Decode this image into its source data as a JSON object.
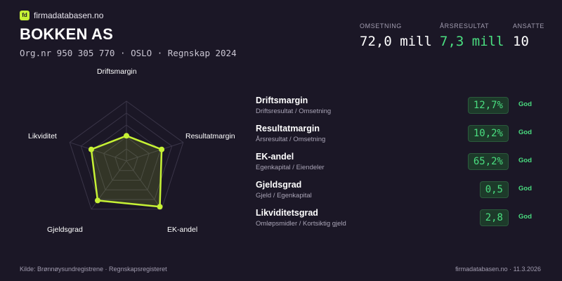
{
  "brand": {
    "name": "firmadatabasen.no",
    "icon": "fd-logo-icon",
    "accent": "#c6f135"
  },
  "company": {
    "name": "BOKKEN AS",
    "org_label": "Org.nr 950 305 770",
    "city": "OSLO",
    "period": "Regnskap 2024"
  },
  "kpis": [
    {
      "label": "OMSETNING",
      "value": "72,0 mill"
    },
    {
      "label": "ÅRSRESULTAT",
      "value": "7,3 mill"
    },
    {
      "label": "ANSATTE",
      "value": "10"
    }
  ],
  "radar": {
    "axes": [
      "Driftsmargin",
      "Resultatmargin",
      "EK-andel",
      "Gjeldsgrad",
      "Likviditet"
    ],
    "scores": [
      0.42,
      0.62,
      0.95,
      0.82,
      0.62
    ],
    "rings": 5,
    "line_color": "#c6f135"
  },
  "metrics": [
    {
      "name": "Driftsmargin",
      "desc": "Driftsresultat / Omsetning",
      "value": "12,7%",
      "status": "God"
    },
    {
      "name": "Resultatmargin",
      "desc": "Årsresultat / Omsetning",
      "value": "10,2%",
      "status": "God"
    },
    {
      "name": "EK-andel",
      "desc": "Egenkapital / Eiendeler",
      "value": "65,2%",
      "status": "God"
    },
    {
      "name": "Gjeldsgrad",
      "desc": "Gjeld / Egenkapital",
      "value": "0,5",
      "status": "God"
    },
    {
      "name": "Likviditetsgrad",
      "desc": "Omløpsmidler / Kortsiktig gjeld",
      "value": "2,8",
      "status": "God"
    }
  ],
  "footer": {
    "source": "Kilde: Brønnøysundregistrene · Regnskapsregisteret",
    "site_date": "firmadatabasen.no · 11.3.2026"
  }
}
